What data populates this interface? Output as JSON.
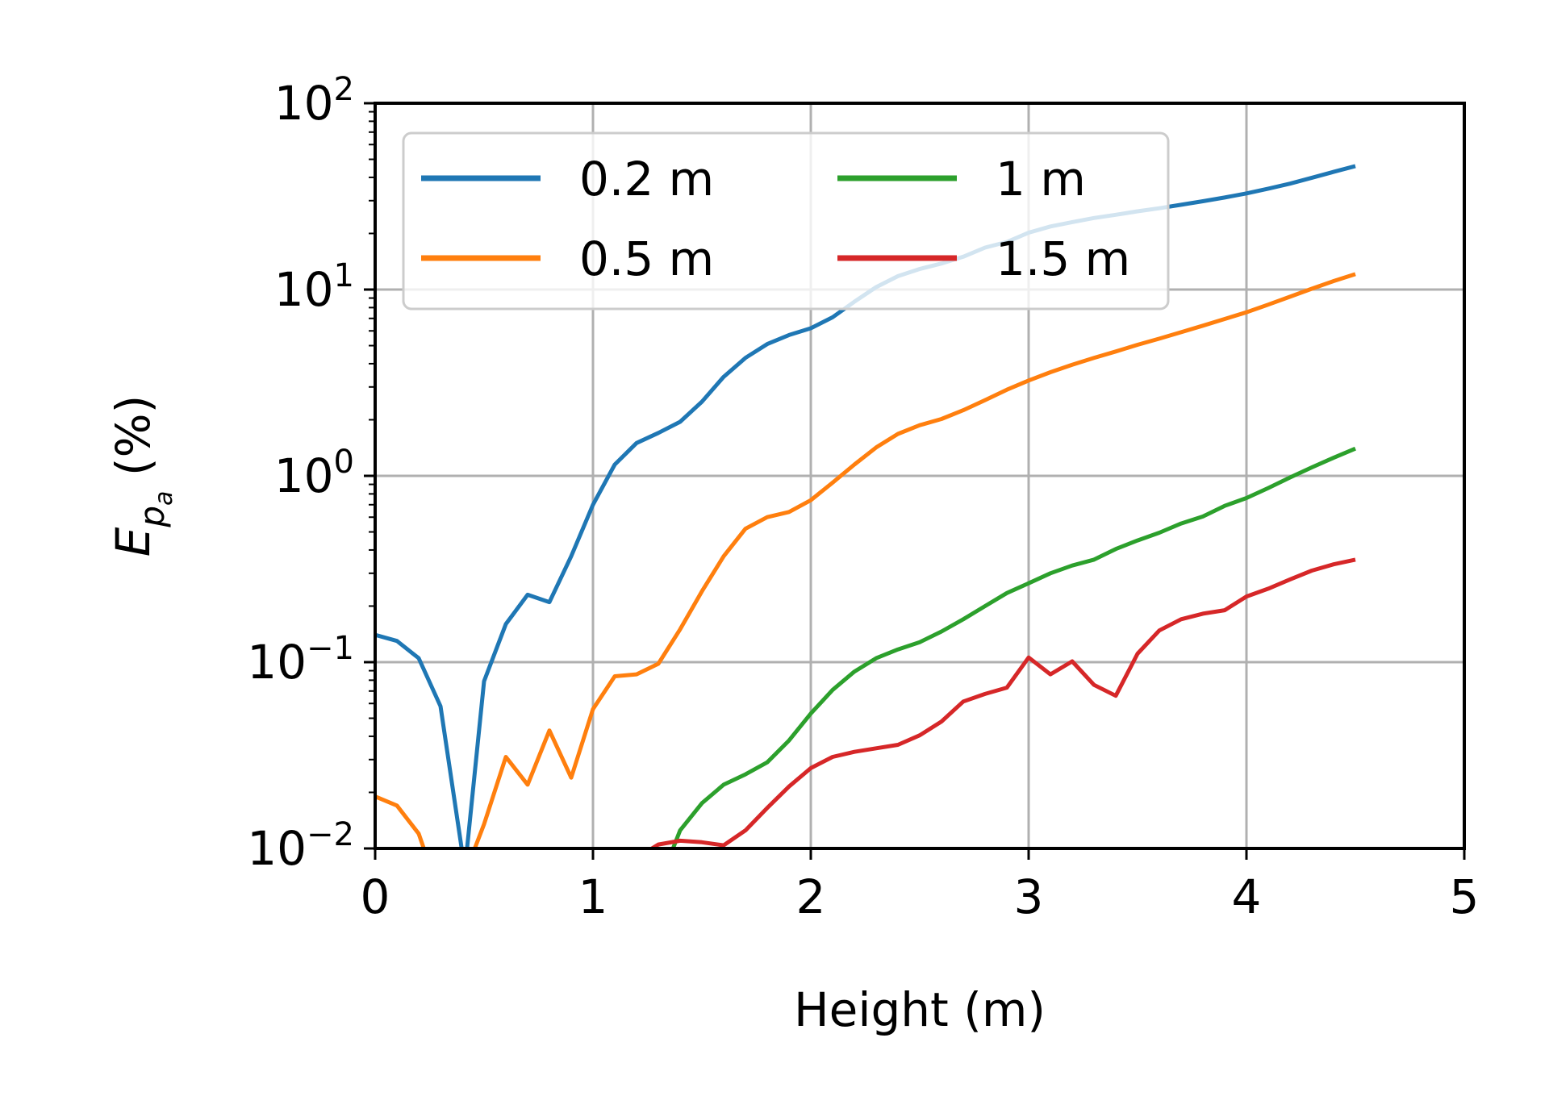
{
  "chart_data": {
    "type": "line",
    "title": "",
    "xlabel": "Height (m)",
    "ylabel": {
      "main": "E",
      "sub": "p",
      "subsub": "a",
      "units": "(%)"
    },
    "yscale": "log",
    "xlim": [
      0,
      5
    ],
    "ylim": [
      0.01,
      100
    ],
    "grid": true,
    "legend": {
      "placement": "upper-left",
      "columns": 2
    },
    "x_ticks": [
      "0",
      "1",
      "2",
      "3",
      "4",
      "5"
    ],
    "y_ticks": [
      {
        "base": "10",
        "exp": "−2"
      },
      {
        "base": "10",
        "exp": "−1"
      },
      {
        "base": "10",
        "exp": "0"
      },
      {
        "base": "10",
        "exp": "1"
      },
      {
        "base": "10",
        "exp": "2"
      }
    ],
    "series": [
      {
        "name": "0.2 m",
        "color": "#1f77b4",
        "x": [
          0,
          0.1,
          0.2,
          0.3,
          0.4,
          0.42,
          0.5,
          0.6,
          0.7,
          0.8,
          0.9,
          1.0,
          1.1,
          1.2,
          1.3,
          1.4,
          1.5,
          1.6,
          1.7,
          1.8,
          1.9,
          2.0,
          2.1,
          2.2,
          2.3,
          2.4,
          2.5,
          2.6,
          2.7,
          2.8,
          2.9,
          3.0,
          3.1,
          3.2,
          3.3,
          3.4,
          3.5,
          3.6,
          3.7,
          3.8,
          3.9,
          4.0,
          4.1,
          4.2,
          4.3,
          4.4,
          4.5
        ],
        "y": [
          0.14,
          0.13,
          0.105,
          0.058,
          0.0095,
          0.0095,
          0.079,
          0.16,
          0.23,
          0.21,
          0.37,
          0.7,
          1.15,
          1.5,
          1.7,
          1.95,
          2.5,
          3.4,
          4.3,
          5.1,
          5.7,
          6.2,
          7.1,
          8.6,
          10.3,
          11.8,
          12.9,
          13.8,
          15.0,
          16.8,
          18.0,
          20.2,
          21.8,
          23.0,
          24.2,
          25.2,
          26.3,
          27.3,
          28.5,
          29.8,
          31.2,
          32.8,
          34.8,
          37.0,
          39.8,
          42.8,
          46.0
        ]
      },
      {
        "name": "0.5 m",
        "color": "#ff7f0e",
        "x": [
          0,
          0.1,
          0.2,
          0.23,
          0.45,
          0.5,
          0.6,
          0.7,
          0.8,
          0.9,
          1.0,
          1.1,
          1.2,
          1.3,
          1.4,
          1.5,
          1.6,
          1.7,
          1.8,
          1.9,
          2.0,
          2.1,
          2.2,
          2.3,
          2.4,
          2.5,
          2.6,
          2.7,
          2.8,
          2.9,
          3.0,
          3.1,
          3.2,
          3.3,
          3.4,
          3.5,
          3.6,
          3.7,
          3.8,
          3.9,
          4.0,
          4.1,
          4.2,
          4.3,
          4.4,
          4.5
        ],
        "y": [
          0.019,
          0.017,
          0.012,
          0.0095,
          0.0095,
          0.0135,
          0.031,
          0.022,
          0.043,
          0.024,
          0.056,
          0.084,
          0.086,
          0.098,
          0.15,
          0.24,
          0.37,
          0.52,
          0.6,
          0.64,
          0.74,
          0.92,
          1.15,
          1.42,
          1.68,
          1.87,
          2.02,
          2.25,
          2.55,
          2.9,
          3.25,
          3.6,
          3.95,
          4.3,
          4.65,
          5.05,
          5.45,
          5.9,
          6.4,
          6.95,
          7.55,
          8.3,
          9.15,
          10.1,
          11.1,
          12.1
        ]
      },
      {
        "name": "1 m",
        "color": "#2ca02c",
        "x": [
          1.36,
          1.4,
          1.5,
          1.6,
          1.7,
          1.8,
          1.9,
          2.0,
          2.1,
          2.2,
          2.3,
          2.4,
          2.5,
          2.6,
          2.7,
          2.8,
          2.9,
          3.0,
          3.1,
          3.2,
          3.3,
          3.4,
          3.5,
          3.6,
          3.7,
          3.8,
          3.9,
          4.0,
          4.1,
          4.2,
          4.3,
          4.4,
          4.5
        ],
        "y": [
          0.0095,
          0.0125,
          0.0175,
          0.022,
          0.025,
          0.029,
          0.038,
          0.053,
          0.071,
          0.089,
          0.105,
          0.117,
          0.128,
          0.146,
          0.17,
          0.2,
          0.235,
          0.265,
          0.3,
          0.33,
          0.355,
          0.405,
          0.45,
          0.495,
          0.555,
          0.605,
          0.69,
          0.76,
          0.86,
          0.98,
          1.11,
          1.25,
          1.4
        ]
      },
      {
        "name": "1.5 m",
        "color": "#d62728",
        "x": [
          1.24,
          1.3,
          1.4,
          1.5,
          1.6,
          1.7,
          1.8,
          1.9,
          2.0,
          2.1,
          2.2,
          2.3,
          2.4,
          2.5,
          2.6,
          2.7,
          2.8,
          2.9,
          3.0,
          3.1,
          3.2,
          3.3,
          3.4,
          3.5,
          3.6,
          3.7,
          3.8,
          3.9,
          4.0,
          4.1,
          4.2,
          4.3,
          4.4,
          4.5
        ],
        "y": [
          0.0095,
          0.0105,
          0.011,
          0.0108,
          0.0104,
          0.0125,
          0.0165,
          0.0215,
          0.027,
          0.031,
          0.033,
          0.0345,
          0.036,
          0.0405,
          0.048,
          0.0615,
          0.0675,
          0.073,
          0.106,
          0.086,
          0.101,
          0.0755,
          0.066,
          0.111,
          0.148,
          0.17,
          0.182,
          0.19,
          0.225,
          0.248,
          0.278,
          0.31,
          0.335,
          0.355
        ]
      }
    ]
  }
}
